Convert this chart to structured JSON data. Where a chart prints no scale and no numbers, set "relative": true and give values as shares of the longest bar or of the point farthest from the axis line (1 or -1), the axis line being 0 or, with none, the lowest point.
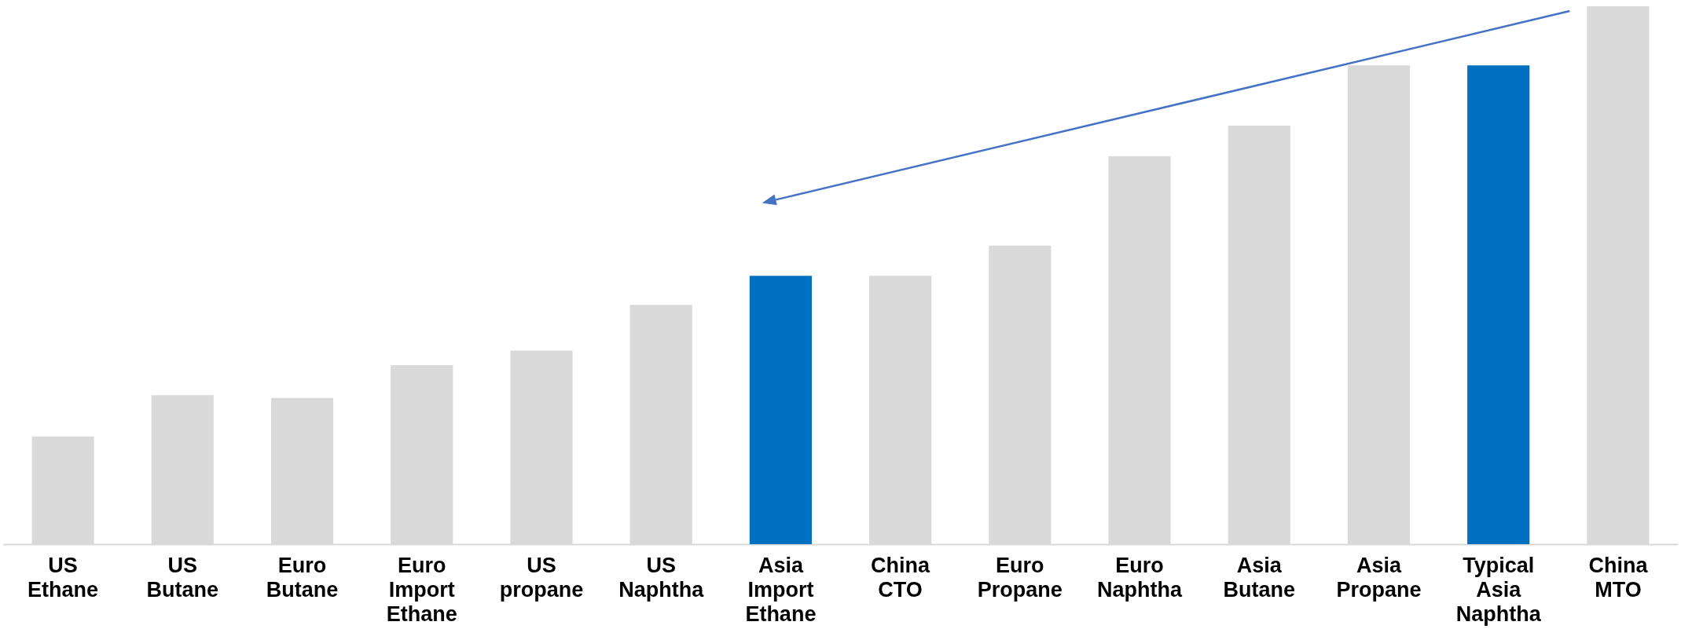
{
  "chart_data": {
    "type": "bar",
    "relative": true,
    "categories": [
      "US Ethane",
      "US Butane",
      "Euro Butane",
      "Euro Import Ethane",
      "US propane",
      "US Naphtha",
      "Asia Import Ethane",
      "China CTO",
      "Euro Propane",
      "Euro Naphtha",
      "Asia Butane",
      "Asia Propane",
      "Typical Asia Naphtha",
      "China MTO"
    ],
    "values": [
      0.2,
      0.277,
      0.272,
      0.333,
      0.36,
      0.445,
      0.499,
      0.499,
      0.555,
      0.721,
      0.778,
      0.89,
      0.89,
      1
    ],
    "colors": [
      "#d9d9d9",
      "#d9d9d9",
      "#d9d9d9",
      "#d9d9d9",
      "#d9d9d9",
      "#d9d9d9",
      "#0070c0",
      "#d9d9d9",
      "#d9d9d9",
      "#d9d9d9",
      "#d9d9d9",
      "#d9d9d9",
      "#0070c0",
      "#d9d9d9"
    ],
    "grid": false,
    "legend": false
  }
}
